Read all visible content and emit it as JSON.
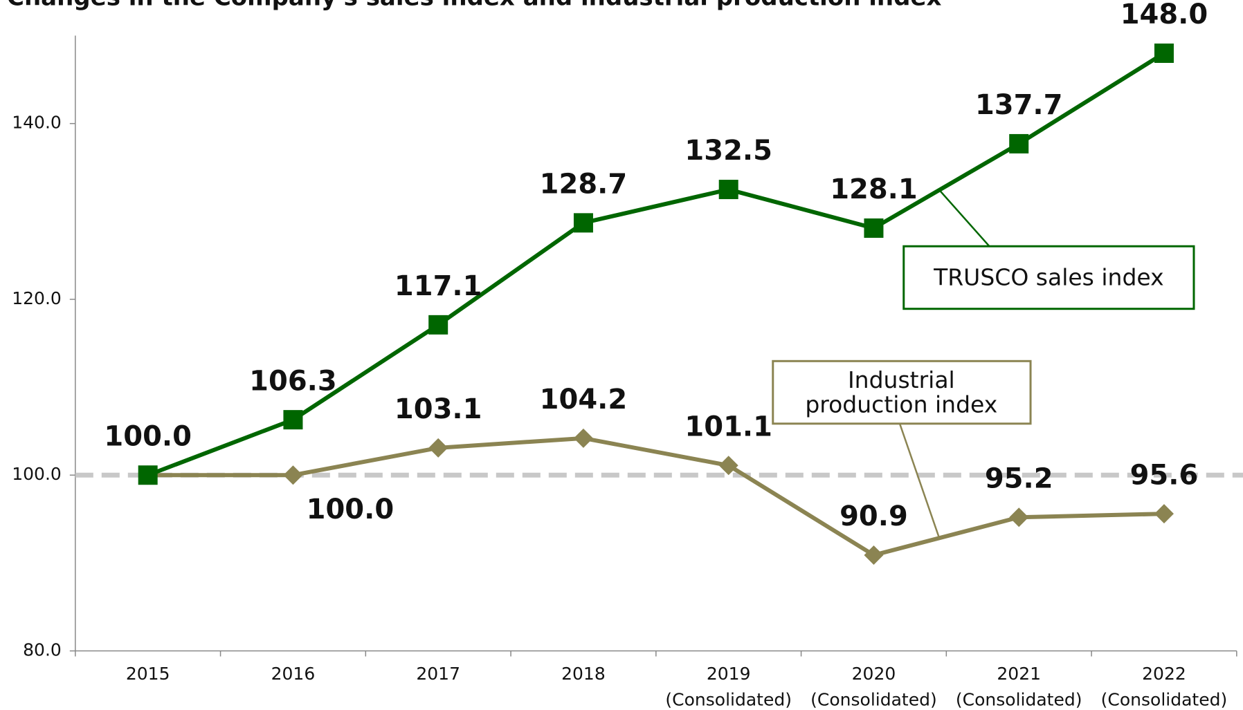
{
  "chart_data": {
    "type": "line",
    "title": "Changes in the Company's sales index and industrial production index",
    "categories": [
      "2015",
      "2016",
      "2017",
      "2018",
      "2019",
      "2020",
      "2021",
      "2022"
    ],
    "category_sublabels": [
      null,
      null,
      null,
      null,
      "(Consolidated)",
      "(Consolidated)",
      "(Consolidated)",
      "(Consolidated)"
    ],
    "series": [
      {
        "name": "TRUSCO sales index",
        "color": "#006600",
        "marker": "square",
        "values": [
          100.0,
          106.3,
          117.1,
          128.7,
          132.5,
          128.1,
          137.7,
          148.0
        ],
        "value_labels": [
          "100.0",
          "106.3",
          "117.1",
          "128.7",
          "132.5",
          "128.1",
          "137.7",
          "148.0"
        ]
      },
      {
        "name": "Industrial production index",
        "color": "#8b8452",
        "marker": "diamond",
        "values": [
          100.0,
          100.0,
          103.1,
          104.2,
          101.1,
          90.9,
          95.2,
          95.6
        ],
        "value_labels": [
          null,
          "100.0",
          "103.1",
          "104.2",
          "101.1",
          "90.9",
          "95.2",
          "95.6"
        ]
      }
    ],
    "reference_line": {
      "value": 100,
      "color": "#c8c8c8"
    },
    "ylim": [
      80,
      150
    ],
    "yticks": [
      {
        "value": 80,
        "label": "80.0"
      },
      {
        "value": 100,
        "label": "100.0"
      },
      {
        "value": 120,
        "label": "120.0"
      },
      {
        "value": 140,
        "label": "140.0"
      }
    ]
  }
}
